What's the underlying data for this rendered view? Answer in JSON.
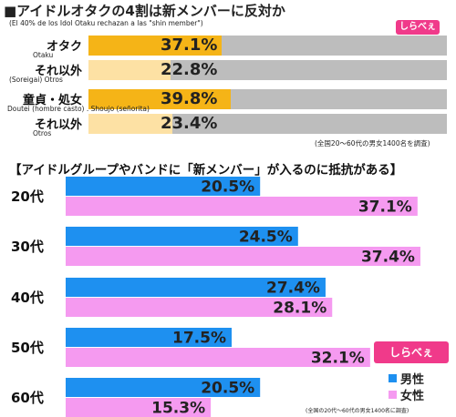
{
  "header": {
    "title": "■アイドルオタクの4割は新メンバーに反対か",
    "subtitle": "(El 40% de los Idol Otaku rechazan a las \"shin member\")"
  },
  "logo": {
    "text": "しらべぇ"
  },
  "chart_data": [
    {
      "type": "bar",
      "orientation": "horizontal",
      "categories": [
        "オタク",
        "それ以外",
        "童貞・処女",
        "それ以外"
      ],
      "category_subs": [
        "Otaku",
        "(Soreigai) Otros",
        "Doutei (hombre casto) . Shoujo (señorita)",
        "Otros"
      ],
      "values": [
        37.1,
        22.8,
        39.8,
        23.4
      ],
      "value_labels": [
        "37.1%",
        "22.8%",
        "39.8%",
        "23.4%"
      ],
      "xlim": [
        0,
        100
      ],
      "colors": [
        "#f5b417",
        "#fde1a4",
        "#f5b417",
        "#fde1a4"
      ],
      "source": "(全国20〜60代の男女1400名を調査)"
    },
    {
      "type": "bar",
      "orientation": "horizontal",
      "title": "【アイドルグループやバンドに「新メンバー」が入るのに抵抗がある】",
      "categories": [
        "20代",
        "30代",
        "40代",
        "50代",
        "60代"
      ],
      "series": [
        {
          "name": "男性",
          "color": "#1e90f0",
          "values": [
            20.5,
            24.5,
            27.4,
            17.5,
            20.5
          ],
          "labels": [
            "20.5%",
            "24.5%",
            "27.4%",
            "17.5%",
            "20.5%"
          ]
        },
        {
          "name": "女性",
          "color": "#f59af0",
          "values": [
            37.1,
            37.4,
            28.1,
            32.1,
            15.3
          ],
          "labels": [
            "37.1%",
            "37.4%",
            "28.1%",
            "32.1%",
            "15.3%"
          ]
        }
      ],
      "xlim": [
        0,
        40
      ],
      "legend": "bottom-right",
      "source": "(全国の20代〜60代の男女1400名に調査)"
    }
  ]
}
